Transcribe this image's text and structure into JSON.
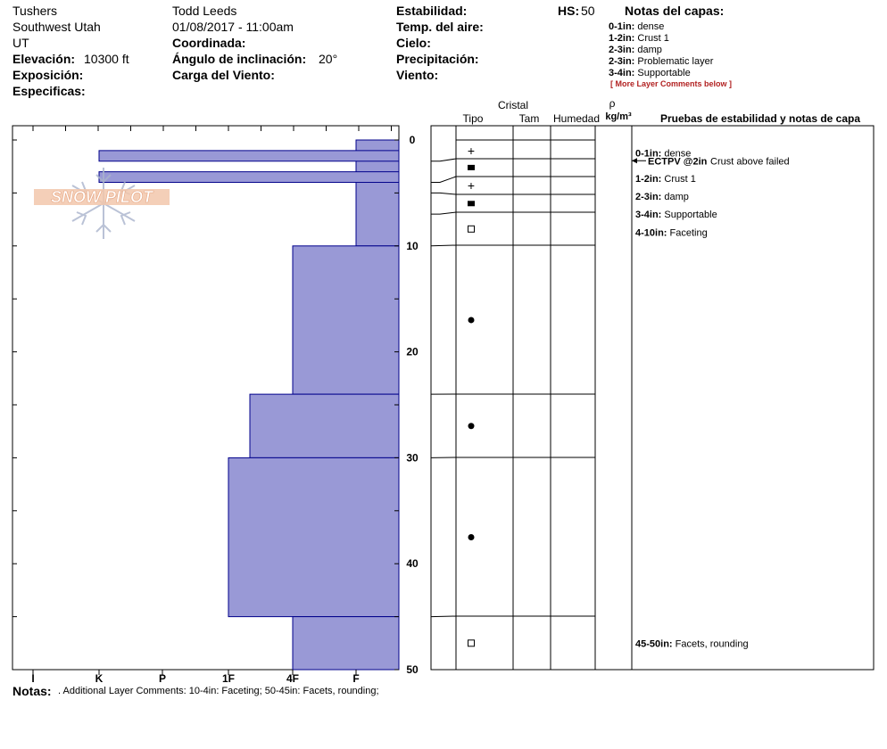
{
  "header": {
    "location": "Tushers",
    "region": "Southwest Utah",
    "state": "UT",
    "elevation_label": "Elevación:",
    "elevation_value": "10300 ft",
    "exposure_label": "Exposición:",
    "specifics_label": "Especificas:",
    "observer": "Todd Leeds",
    "datetime": "01/08/2017 - 11:00am",
    "coord_label": "Coordinada:",
    "slope_label": "Ángulo de inclinación:",
    "slope_value": "20°",
    "wind_load_label": "Carga del Viento:",
    "stability_label": "Estabilidad:",
    "air_temp_label": "Temp. del aire:",
    "sky_label": "Cielo:",
    "precip_label": "Precipitación:",
    "wind_label": "Viento:",
    "hs_label": "HS:",
    "hs_value": "50",
    "layer_notes_title": "Notas del capas:",
    "layer_notes": [
      {
        "range": "0-1in:",
        "text": "dense"
      },
      {
        "range": "1-2in:",
        "text": "Crust 1"
      },
      {
        "range": "2-3in:",
        "text": "damp"
      },
      {
        "range": "2-3in:",
        "text": "Problematic layer"
      },
      {
        "range": "3-4in:",
        "text": "Supportable"
      }
    ],
    "more_comments": "[ More Layer Comments below ]"
  },
  "logo": {
    "text": "SNOW PILOT",
    "icon": "snowflake-icon"
  },
  "columns": {
    "crystal": "Cristal",
    "type": "Tipo",
    "size": "Tam",
    "moisture": "Humedad",
    "rho": "ρ",
    "density_unit": "kg/m³",
    "tests_notes": "Pruebas de estabilidad y notas de capa"
  },
  "colors": {
    "bar_fill": "#9999d6",
    "bar_stroke": "#00008b",
    "more_comments": "#b22222"
  },
  "chart_data": {
    "type": "bar",
    "orientation": "horizontal",
    "x_ticks": [
      "I",
      "K",
      "P",
      "1F",
      "4F",
      "F"
    ],
    "depth_axis": {
      "min": 0,
      "max": 50,
      "ticks": [
        0,
        10,
        20,
        30,
        40,
        50
      ],
      "unit": "in"
    },
    "hardness_profile": [
      {
        "from": 0,
        "to": 10,
        "hardness": "F"
      },
      {
        "from": 1,
        "to": 2,
        "hardness": "K"
      },
      {
        "from": 3,
        "to": 4,
        "hardness": "K"
      },
      {
        "from": 10,
        "to": 24,
        "hardness": "4F"
      },
      {
        "from": 24,
        "to": 30,
        "hardness": "1F+"
      },
      {
        "from": 30,
        "to": 45,
        "hardness": "1F"
      },
      {
        "from": 45,
        "to": 50,
        "hardness": "4F"
      }
    ],
    "layer_boundaries": [
      0,
      2,
      4,
      5,
      7,
      10,
      24,
      30,
      45,
      50
    ],
    "crystal_symbols": [
      {
        "depth": 1,
        "symbol": "+"
      },
      {
        "depth": 2.6,
        "symbol": "■"
      },
      {
        "depth": 4.3,
        "symbol": "+"
      },
      {
        "depth": 6,
        "symbol": "■"
      },
      {
        "depth": 8.4,
        "symbol": "□"
      },
      {
        "depth": 17,
        "symbol": "●"
      },
      {
        "depth": 27,
        "symbol": "●"
      },
      {
        "depth": 37.5,
        "symbol": "●"
      },
      {
        "depth": 47.5,
        "symbol": "□"
      }
    ],
    "stability_test": {
      "depth": 2,
      "label": "ECTPV @2in",
      "note": "Crust above failed"
    },
    "layer_comments": [
      {
        "depth": 1.2,
        "range": "0-1in:",
        "text": "dense"
      },
      {
        "depth": 3.6,
        "range": "1-2in:",
        "text": "Crust 1"
      },
      {
        "depth": 5.3,
        "range": "2-3in:",
        "text": "damp"
      },
      {
        "depth": 7,
        "range": "3-4in:",
        "text": "Supportable"
      },
      {
        "depth": 8.7,
        "range": "4-10in:",
        "text": "Faceting"
      },
      {
        "depth": 47.5,
        "range": "45-50in:",
        "text": "Facets, rounding"
      }
    ]
  },
  "notes": {
    "label": "Notas:",
    "text": ". Additional Layer Comments: 10-4in: Faceting; 50-45in: Facets, rounding;"
  }
}
